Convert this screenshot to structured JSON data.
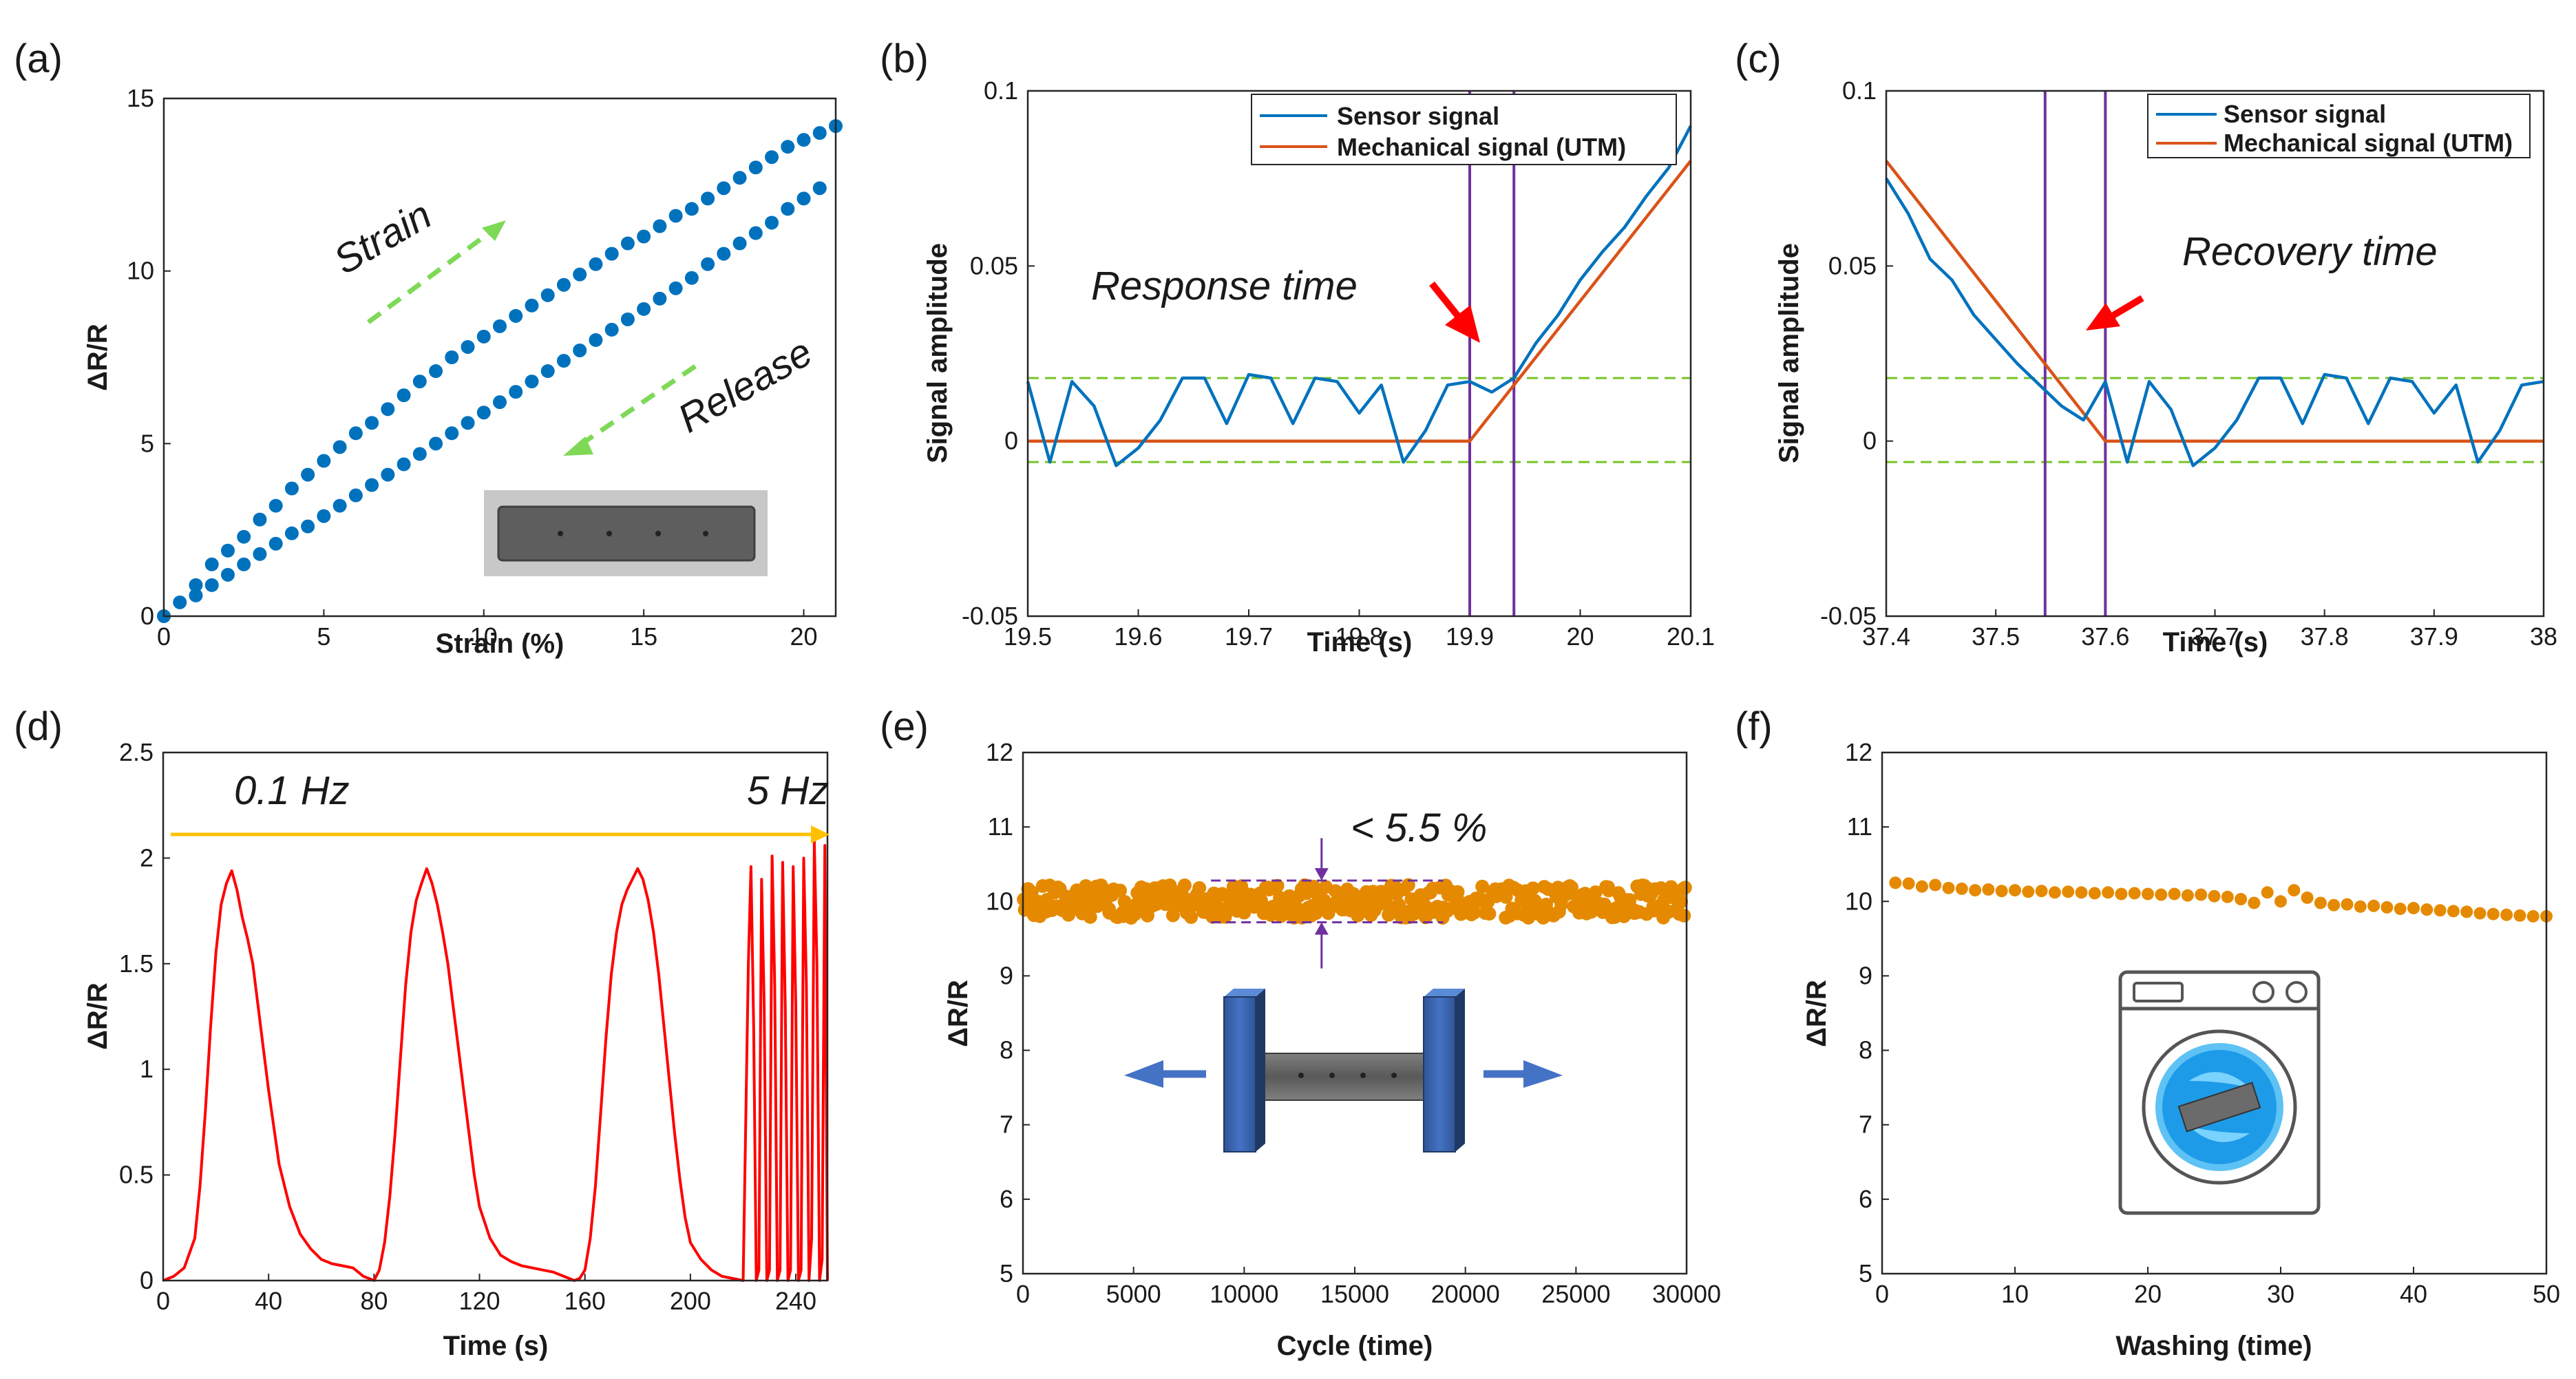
{
  "colors": {
    "sensor": "#0072bd",
    "mechanical": "#d95319",
    "scatter": "#0072bd",
    "orange": "#e58a00",
    "threshold": "#77c428",
    "marker": "#7030a0",
    "arrow_red": "#ff0000",
    "arrow_green": "#7ed957",
    "arrow_yellow": "#ffc000",
    "curve_d": "#ff0000"
  },
  "chart_data": [
    {
      "id": "a",
      "panel_label": "(a)",
      "type": "scatter",
      "xlabel": "Strain (%)",
      "ylabel": "ΔR/R",
      "xlim": [
        0,
        21
      ],
      "ylim": [
        0,
        15
      ],
      "xticks": [
        "0",
        "5",
        "10",
        "15",
        "20"
      ],
      "yticks": [
        "0",
        "5",
        "10",
        "15"
      ],
      "annotations": [
        "Strain",
        "Release"
      ],
      "series": [
        {
          "name": "Strain",
          "x": [
            0,
            0.5,
            1,
            1.5,
            2,
            2.5,
            3,
            3.5,
            4,
            4.5,
            5,
            5.5,
            6,
            6.5,
            7,
            7.5,
            8,
            8.5,
            9,
            9.5,
            10,
            10.5,
            11,
            11.5,
            12,
            12.5,
            13,
            13.5,
            14,
            14.5,
            15,
            15.5,
            16,
            16.5,
            17,
            17.5,
            18,
            18.5,
            19,
            19.5,
            20,
            20.5,
            21
          ],
          "y": [
            0,
            0.4,
            0.9,
            1.5,
            1.9,
            2.3,
            2.8,
            3.2,
            3.7,
            4.1,
            4.5,
            4.9,
            5.3,
            5.6,
            6.0,
            6.4,
            6.8,
            7.1,
            7.5,
            7.8,
            8.1,
            8.4,
            8.7,
            9.0,
            9.3,
            9.6,
            9.9,
            10.2,
            10.5,
            10.8,
            11.0,
            11.3,
            11.6,
            11.8,
            12.1,
            12.4,
            12.7,
            13.0,
            13.3,
            13.6,
            13.8,
            14.0,
            14.2
          ]
        },
        {
          "name": "Release",
          "x": [
            20.5,
            20,
            19.5,
            19,
            18.5,
            18,
            17.5,
            17,
            16.5,
            16,
            15.5,
            15,
            14.5,
            14,
            13.5,
            13,
            12.5,
            12,
            11.5,
            11,
            10.5,
            10,
            9.5,
            9,
            8.5,
            8,
            7.5,
            7,
            6.5,
            6,
            5.5,
            5,
            4.5,
            4,
            3.5,
            3,
            2.5,
            2,
            1.5,
            1
          ],
          "y": [
            12.4,
            12.1,
            11.8,
            11.4,
            11.1,
            10.8,
            10.5,
            10.2,
            9.8,
            9.5,
            9.2,
            8.9,
            8.6,
            8.3,
            8.0,
            7.7,
            7.4,
            7.1,
            6.8,
            6.5,
            6.2,
            5.9,
            5.6,
            5.3,
            5.0,
            4.7,
            4.4,
            4.1,
            3.8,
            3.5,
            3.2,
            2.9,
            2.6,
            2.4,
            2.1,
            1.8,
            1.5,
            1.2,
            0.9,
            0.6
          ]
        }
      ]
    },
    {
      "id": "b",
      "panel_label": "(b)",
      "type": "line",
      "xlabel": "Time (s)",
      "ylabel": "Signal amplitude",
      "xlim": [
        19.5,
        20.1
      ],
      "ylim": [
        -0.05,
        0.1
      ],
      "xticks": [
        "19.5",
        "19.6",
        "19.7",
        "19.8",
        "19.9",
        "20",
        "20.1"
      ],
      "yticks": [
        "-0.05",
        "0",
        "0.05",
        "0.1"
      ],
      "thresholds": [
        0.018,
        -0.006
      ],
      "markers": [
        19.9,
        19.94
      ],
      "annotation": "Response time",
      "series": [
        {
          "name": "Sensor signal",
          "x": [
            19.5,
            19.52,
            19.54,
            19.56,
            19.58,
            19.6,
            19.62,
            19.64,
            19.66,
            19.68,
            19.7,
            19.72,
            19.74,
            19.76,
            19.78,
            19.8,
            19.82,
            19.84,
            19.86,
            19.88,
            19.9,
            19.92,
            19.94,
            19.96,
            19.98,
            20.0,
            20.02,
            20.04,
            20.06,
            20.08,
            20.1
          ],
          "y": [
            0.017,
            -0.006,
            0.017,
            0.01,
            -0.007,
            -0.002,
            0.006,
            0.018,
            0.018,
            0.005,
            0.019,
            0.018,
            0.005,
            0.018,
            0.017,
            0.008,
            0.016,
            -0.006,
            0.003,
            0.016,
            0.017,
            0.014,
            0.018,
            0.028,
            0.036,
            0.046,
            0.054,
            0.061,
            0.07,
            0.078,
            0.09
          ]
        },
        {
          "name": "Mechanical signal (UTM)",
          "x": [
            19.5,
            19.9,
            20.1
          ],
          "y": [
            0,
            0,
            0.08
          ]
        }
      ]
    },
    {
      "id": "c",
      "panel_label": "(c)",
      "type": "line",
      "xlabel": "Time (s)",
      "ylabel": "Signal amplitude",
      "xlim": [
        37.4,
        38
      ],
      "ylim": [
        -0.05,
        0.1
      ],
      "xticks": [
        "37.4",
        "37.5",
        "37.6",
        "37.7",
        "37.8",
        "37.9",
        "38"
      ],
      "yticks": [
        "-0.05",
        "0",
        "0.05",
        "0.1"
      ],
      "thresholds": [
        0.018,
        -0.006
      ],
      "markers": [
        37.545,
        37.6
      ],
      "annotation": "Recovery time",
      "series": [
        {
          "name": "Sensor signal",
          "x": [
            37.4,
            37.42,
            37.44,
            37.46,
            37.48,
            37.5,
            37.52,
            37.54,
            37.56,
            37.58,
            37.6,
            37.62,
            37.64,
            37.66,
            37.68,
            37.7,
            37.72,
            37.74,
            37.76,
            37.78,
            37.8,
            37.82,
            37.84,
            37.86,
            37.88,
            37.9,
            37.92,
            37.94,
            37.96,
            37.98,
            38.0
          ],
          "y": [
            0.075,
            0.065,
            0.052,
            0.046,
            0.036,
            0.029,
            0.022,
            0.016,
            0.01,
            0.006,
            0.017,
            -0.006,
            0.017,
            0.009,
            -0.007,
            -0.002,
            0.006,
            0.018,
            0.018,
            0.005,
            0.019,
            0.018,
            0.005,
            0.018,
            0.017,
            0.008,
            0.016,
            -0.006,
            0.003,
            0.016,
            0.017
          ]
        },
        {
          "name": "Mechanical signal (UTM)",
          "x": [
            37.4,
            37.6,
            38.0
          ],
          "y": [
            0.08,
            0,
            0
          ]
        }
      ]
    },
    {
      "id": "d",
      "panel_label": "(d)",
      "type": "line",
      "xlabel": "Time (s)",
      "ylabel": "ΔR/R",
      "xlim": [
        0,
        252
      ],
      "ylim": [
        0,
        2.5
      ],
      "xticks": [
        "0",
        "40",
        "80",
        "120",
        "160",
        "200",
        "240"
      ],
      "yticks": [
        "0",
        "0.5",
        "1",
        "1.5",
        "2",
        "2.5"
      ],
      "annotations": [
        "0.1 Hz",
        "5 Hz"
      ],
      "series": [
        {
          "name": "ΔR/R",
          "x": [
            0,
            4,
            8,
            12,
            14,
            16,
            18,
            20,
            22,
            24,
            26,
            28,
            30,
            32,
            34,
            36,
            38,
            40,
            44,
            48,
            52,
            56,
            60,
            64,
            68,
            72,
            74,
            76,
            78,
            80,
            82,
            84,
            86,
            88,
            90,
            92,
            94,
            96,
            98,
            100,
            102,
            104,
            106,
            108,
            110,
            112,
            114,
            116,
            118,
            120,
            124,
            128,
            132,
            136,
            140,
            144,
            148,
            152,
            154,
            156,
            158,
            160,
            162,
            164,
            166,
            168,
            170,
            172,
            174,
            176,
            178,
            180,
            182,
            184,
            186,
            188,
            190,
            192,
            194,
            196,
            198,
            200,
            204,
            208,
            212,
            216,
            220,
            222,
            223,
            224,
            225,
            226,
            227,
            228,
            229,
            230,
            231,
            232,
            233,
            234,
            235,
            236,
            237,
            238,
            239,
            240,
            241,
            242,
            243,
            244,
            245,
            246,
            247,
            248,
            249,
            250,
            251,
            252
          ],
          "y": [
            0,
            0.02,
            0.06,
            0.2,
            0.45,
            0.8,
            1.2,
            1.55,
            1.78,
            1.88,
            1.94,
            1.85,
            1.72,
            1.62,
            1.5,
            1.3,
            1.1,
            0.9,
            0.55,
            0.35,
            0.22,
            0.15,
            0.1,
            0.08,
            0.07,
            0.06,
            0.04,
            0.02,
            0.01,
            0,
            0.05,
            0.18,
            0.4,
            0.7,
            1.05,
            1.4,
            1.65,
            1.8,
            1.88,
            1.95,
            1.88,
            1.78,
            1.65,
            1.5,
            1.3,
            1.1,
            0.9,
            0.7,
            0.5,
            0.35,
            0.2,
            0.12,
            0.09,
            0.07,
            0.06,
            0.05,
            0.04,
            0.02,
            0.01,
            0,
            0.01,
            0.05,
            0.2,
            0.45,
            0.8,
            1.15,
            1.45,
            1.65,
            1.78,
            1.85,
            1.9,
            1.95,
            1.9,
            1.8,
            1.65,
            1.45,
            1.2,
            0.95,
            0.7,
            0.48,
            0.3,
            0.18,
            0.1,
            0.05,
            0.02,
            0.01,
            0,
            1.5,
            1.96,
            1.2,
            0,
            0.05,
            1.9,
            1.3,
            0,
            0.05,
            2.01,
            1.4,
            0,
            0.05,
            1.98,
            1.3,
            0,
            0.05,
            1.96,
            1.3,
            0,
            0.05,
            2.0,
            1.4,
            0,
            0.2,
            2.08,
            1.5,
            0,
            0.1,
            2.06,
            0
          ]
        }
      ]
    },
    {
      "id": "e",
      "panel_label": "(e)",
      "type": "scatter",
      "xlabel": "Cycle (time)",
      "ylabel": "ΔR/R",
      "xlim": [
        0,
        30000
      ],
      "ylim": [
        5,
        12
      ],
      "xticks": [
        "0",
        "5000",
        "10000",
        "15000",
        "20000",
        "25000",
        "30000"
      ],
      "yticks": [
        "5",
        "6",
        "7",
        "8",
        "9",
        "10",
        "11",
        "12"
      ],
      "annotation": "< 5.5 %",
      "band": {
        "mean": 10.0,
        "low": 9.72,
        "high": 10.28,
        "range": [
          8500,
          19000
        ]
      },
      "series": [
        {
          "name": "ΔR/R",
          "x_range": [
            0,
            30000
          ],
          "mean": 10.0,
          "spread": 0.22,
          "count": 400
        }
      ]
    },
    {
      "id": "f",
      "panel_label": "(f)",
      "type": "scatter",
      "xlabel": "Washing (time)",
      "ylabel": "ΔR/R",
      "xlim": [
        0,
        50
      ],
      "ylim": [
        5,
        12
      ],
      "xticks": [
        "0",
        "10",
        "20",
        "30",
        "40",
        "50"
      ],
      "yticks": [
        "5",
        "6",
        "7",
        "8",
        "9",
        "10",
        "11",
        "12"
      ],
      "series": [
        {
          "name": "ΔR/R",
          "x": [
            1,
            2,
            3,
            4,
            5,
            6,
            7,
            8,
            9,
            10,
            11,
            12,
            13,
            14,
            15,
            16,
            17,
            18,
            19,
            20,
            21,
            22,
            23,
            24,
            25,
            26,
            27,
            28,
            29,
            30,
            31,
            32,
            33,
            34,
            35,
            36,
            37,
            38,
            39,
            40,
            41,
            42,
            43,
            44,
            45,
            46,
            47,
            48,
            49,
            50
          ],
          "y": [
            10.25,
            10.24,
            10.2,
            10.22,
            10.18,
            10.17,
            10.15,
            10.16,
            10.14,
            10.15,
            10.13,
            10.14,
            10.12,
            10.13,
            10.12,
            10.11,
            10.12,
            10.1,
            10.11,
            10.1,
            10.09,
            10.1,
            10.08,
            10.09,
            10.07,
            10.06,
            10.03,
            9.98,
            10.12,
            10.0,
            10.15,
            10.05,
            9.98,
            9.95,
            9.96,
            9.93,
            9.94,
            9.92,
            9.9,
            9.91,
            9.89,
            9.88,
            9.87,
            9.86,
            9.84,
            9.83,
            9.82,
            9.81,
            9.8,
            9.8
          ]
        }
      ]
    }
  ]
}
